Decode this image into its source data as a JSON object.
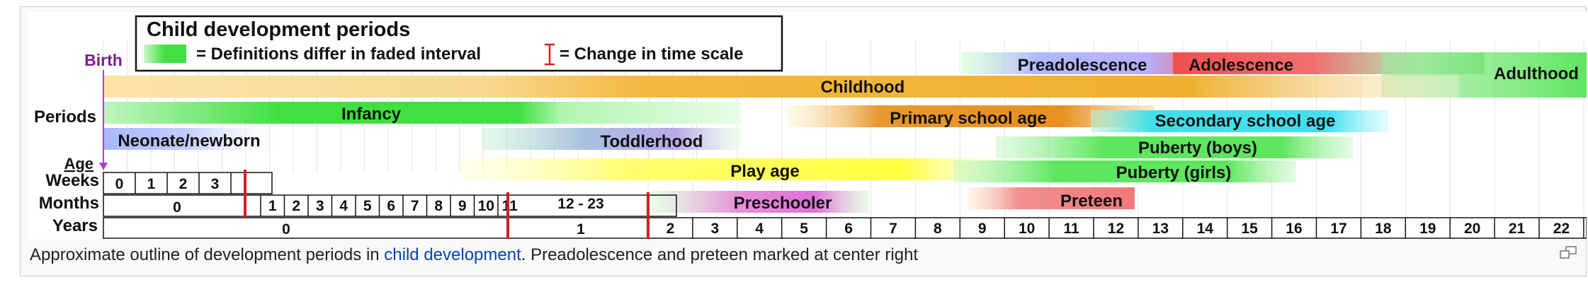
{
  "legend": {
    "title": "Child development periods",
    "faded_text": "= Definitions differ in faded interval",
    "scale_text": "= Change in time scale"
  },
  "labels": {
    "birth": "Birth",
    "periods": "Periods",
    "age": "Age",
    "weeks": "Weeks",
    "months": "Months",
    "years": "Years"
  },
  "weeks": [
    "0",
    "1",
    "2",
    "3"
  ],
  "months_first": "0",
  "months": [
    "1",
    "2",
    "3",
    "4",
    "5",
    "6",
    "7",
    "8",
    "9",
    "10",
    "11"
  ],
  "months_second": "12 - 23",
  "years_first": "0",
  "years_second": "1",
  "years": [
    "2",
    "3",
    "4",
    "5",
    "6",
    "7",
    "8",
    "9",
    "10",
    "11",
    "12",
    "13",
    "14",
    "15",
    "16",
    "17",
    "18",
    "19",
    "20",
    "21",
    "22"
  ],
  "periods": {
    "preadolescence": "Preadolescence",
    "adolescence": "Adolescence",
    "adulthood": "Adulthood",
    "childhood": "Childhood",
    "infancy": "Infancy",
    "primary_school_age": "Primary school age",
    "secondary_school_age": "Secondary school age",
    "neonate": "Neonate/newborn",
    "toddlerhood": "Toddlerhood",
    "puberty_boys": "Puberty (boys)",
    "play_age": "Play age",
    "puberty_girls": "Puberty (girls)",
    "preschooler": "Preschooler",
    "preteen": "Preteen"
  },
  "caption": {
    "before": "Approximate outline of development periods in ",
    "link": "child development",
    "after": ". Preadolescence and preteen marked at center right"
  },
  "colors": {
    "birth": "#7a1e8e",
    "scale_marker": "#d02020",
    "infancy": "#3fe03f",
    "childhood": "#f0b030",
    "primary": "#e09020",
    "secondary": "#40d8f0",
    "neonate": "#a8b8ff",
    "toddler": "#a0a8e8",
    "play": "#ffff40",
    "puberty": "#5ee65e",
    "preschool": "#e070d8",
    "preteen": "#f08080",
    "preadolescence": "#a8a8ff",
    "adolescence": "#f05050",
    "adulthood": "#70e070"
  }
}
